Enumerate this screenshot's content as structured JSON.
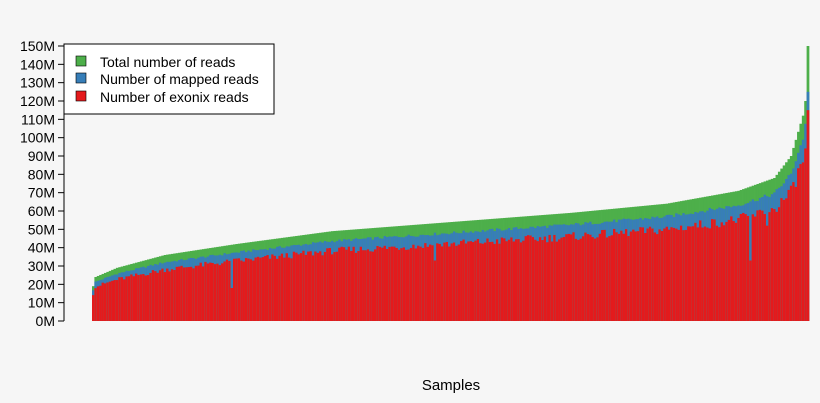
{
  "chart_data": {
    "type": "bar",
    "stacked": true,
    "xlabel": "Samples",
    "ylabel": "",
    "ylim": [
      0,
      150000000
    ],
    "yticks": [
      "0M",
      "10M",
      "20M",
      "30M",
      "40M",
      "50M",
      "60M",
      "70M",
      "80M",
      "90M",
      "100M",
      "110M",
      "120M",
      "130M",
      "140M",
      "150M"
    ],
    "legend": {
      "placement": "top-left",
      "entries": [
        {
          "label": "Total number of reads",
          "color": "#4daf4a"
        },
        {
          "label": "Number of mapped reads",
          "color": "#377eb8"
        },
        {
          "label": "Number of exonix reads",
          "color": "#e41a1c"
        }
      ]
    },
    "n_samples": 300,
    "series": [
      {
        "name": "Total number of reads",
        "color": "#4daf4a",
        "anchors_millions": [
          [
            0,
            19
          ],
          [
            1,
            24
          ],
          [
            10,
            29
          ],
          [
            30,
            36
          ],
          [
            60,
            42
          ],
          [
            100,
            49
          ],
          [
            150,
            54
          ],
          [
            200,
            59
          ],
          [
            240,
            64
          ],
          [
            270,
            71
          ],
          [
            285,
            78
          ],
          [
            292,
            90
          ],
          [
            297,
            112
          ],
          [
            298,
            120
          ],
          [
            299,
            150
          ]
        ]
      },
      {
        "name": "Number of mapped reads",
        "color": "#377eb8",
        "fraction_of_total": 0.89,
        "last_value_millions": 125
      },
      {
        "name": "Number of exonix reads",
        "color": "#e41a1c",
        "fraction_of_total": 0.78,
        "last_value_millions": 115,
        "dips": [
          [
            58,
            18
          ],
          [
            143,
            33
          ],
          [
            275,
            33
          ],
          [
            282,
            52
          ]
        ]
      }
    ]
  }
}
